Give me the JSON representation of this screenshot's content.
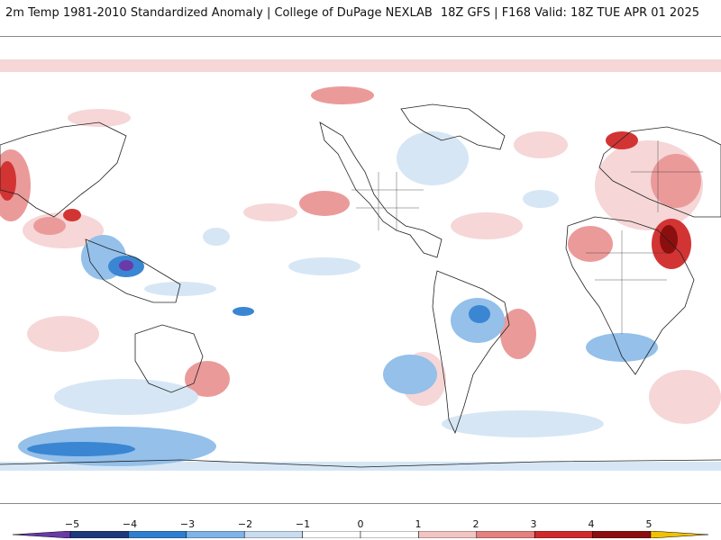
{
  "header": {
    "title_left": "2m Temp 1981-2010 Standardized Anomaly | College of DuPage NEXLAB",
    "title_right": "18Z GFS | F168 Valid: 18Z TUE APR 01 2025"
  },
  "colorbar": {
    "ticks": [
      "-5",
      "-4",
      "-3",
      "-2",
      "-1",
      "0",
      "1",
      "2",
      "3",
      "4",
      "5"
    ],
    "colors": [
      "#6a3aa8",
      "#1f3a7a",
      "#2f7fcf",
      "#7fb4e6",
      "#c9dcf0",
      "#ffffff",
      "#ffffff",
      "#f2c4c4",
      "#e58080",
      "#cf2a2a",
      "#8c0f0f",
      "#f2c200"
    ]
  },
  "map": {
    "palette": {
      "warm_light": "#f6d6d6",
      "warm_mid": "#eb9a9a",
      "warm_strong": "#d23434",
      "warm_extreme": "#8c0f0f",
      "cool_light": "#d6e6f5",
      "cool_mid": "#94c0ea",
      "cool_strong": "#3a86d2",
      "cool_extreme": "#1f3a7a",
      "purple": "#6a3aa8",
      "coast": "#222222"
    }
  }
}
